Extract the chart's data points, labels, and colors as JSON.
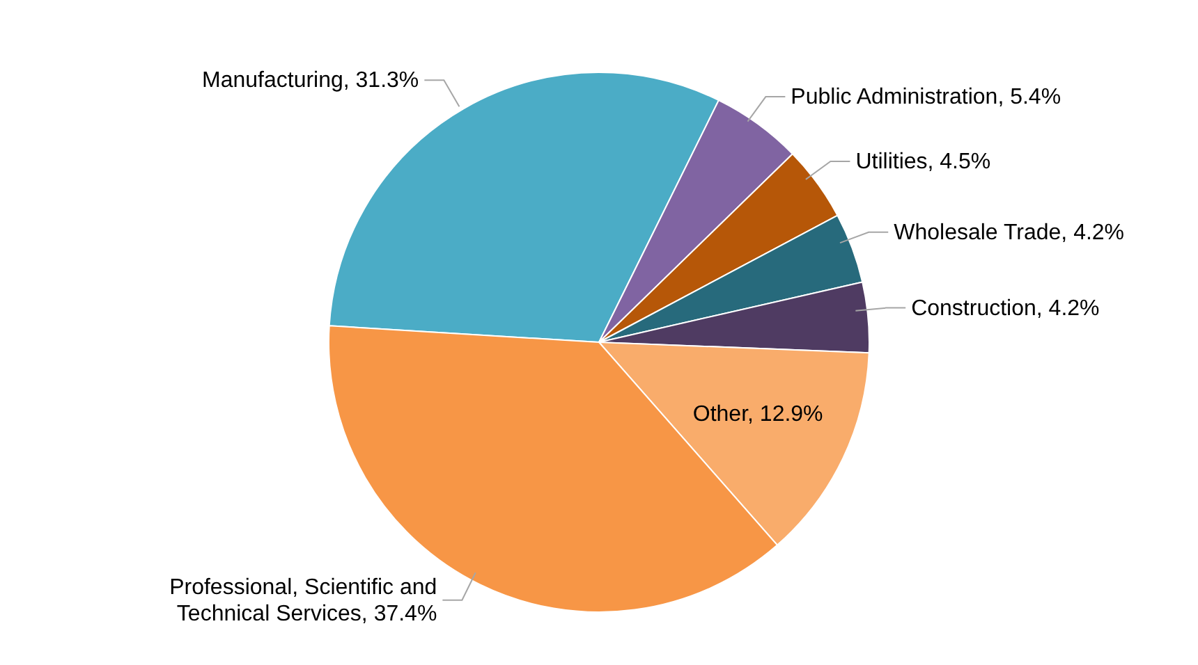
{
  "chart_data": {
    "type": "pie",
    "categories": [
      "Manufacturing",
      "Public Administration",
      "Utilities",
      "Wholesale Trade",
      "Construction",
      "Other",
      "Professional, Scientific and Technical Services"
    ],
    "values": [
      31.3,
      5.4,
      4.5,
      4.2,
      4.2,
      12.9,
      37.4
    ],
    "value_labels": [
      "31.3%",
      "5.4%",
      "4.5%",
      "4.2%",
      "4.2%",
      "12.9%",
      "37.4%"
    ],
    "colors": [
      "#4bacc6",
      "#8064a2",
      "#b65708",
      "#276a7c",
      "#4f3b62",
      "#f9ac6b",
      "#f79646"
    ]
  }
}
